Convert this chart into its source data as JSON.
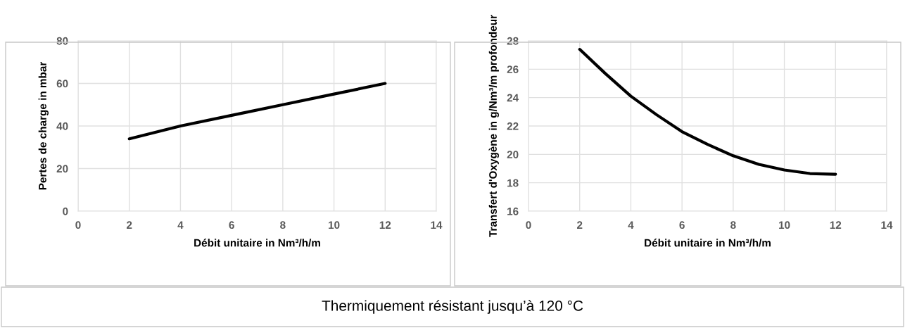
{
  "chart_data": [
    {
      "type": "line",
      "xlabel": "Débit unitaire in Nm³/h/m",
      "ylabel": "Pertes de charge in mbar",
      "series": [
        {
          "color": "#000000",
          "x": [
            2,
            4,
            6,
            8,
            10,
            12
          ],
          "values": [
            34,
            40,
            45,
            50,
            55,
            60
          ]
        }
      ],
      "xlim": [
        0,
        14
      ],
      "xticks": [
        0,
        2,
        4,
        6,
        8,
        10,
        12,
        14
      ],
      "ylim": [
        0,
        80
      ],
      "yticks": [
        0,
        20,
        40,
        60,
        80
      ],
      "grid": true,
      "legend": false
    },
    {
      "type": "line",
      "xlabel": "Débit unitaire in Nm³/h/m",
      "ylabel": "Transfert d'Oxygène in g/Nm³/m profondeur",
      "series": [
        {
          "color": "#000000",
          "x": [
            2,
            3,
            4,
            5,
            6,
            7,
            8,
            9,
            10,
            11,
            12
          ],
          "values": [
            27.4,
            25.7,
            24.1,
            22.8,
            21.6,
            20.7,
            19.9,
            19.3,
            18.9,
            18.65,
            18.6
          ]
        }
      ],
      "xlim": [
        0,
        14
      ],
      "xticks": [
        0,
        2,
        4,
        6,
        8,
        10,
        12,
        14
      ],
      "ylim": [
        16,
        28
      ],
      "yticks": [
        16,
        18,
        20,
        22,
        24,
        26,
        28
      ],
      "grid": true,
      "legend": false,
      "annotations": [
        "Thermiquement résistant jusqu’à 120 °C"
      ]
    }
  ]
}
